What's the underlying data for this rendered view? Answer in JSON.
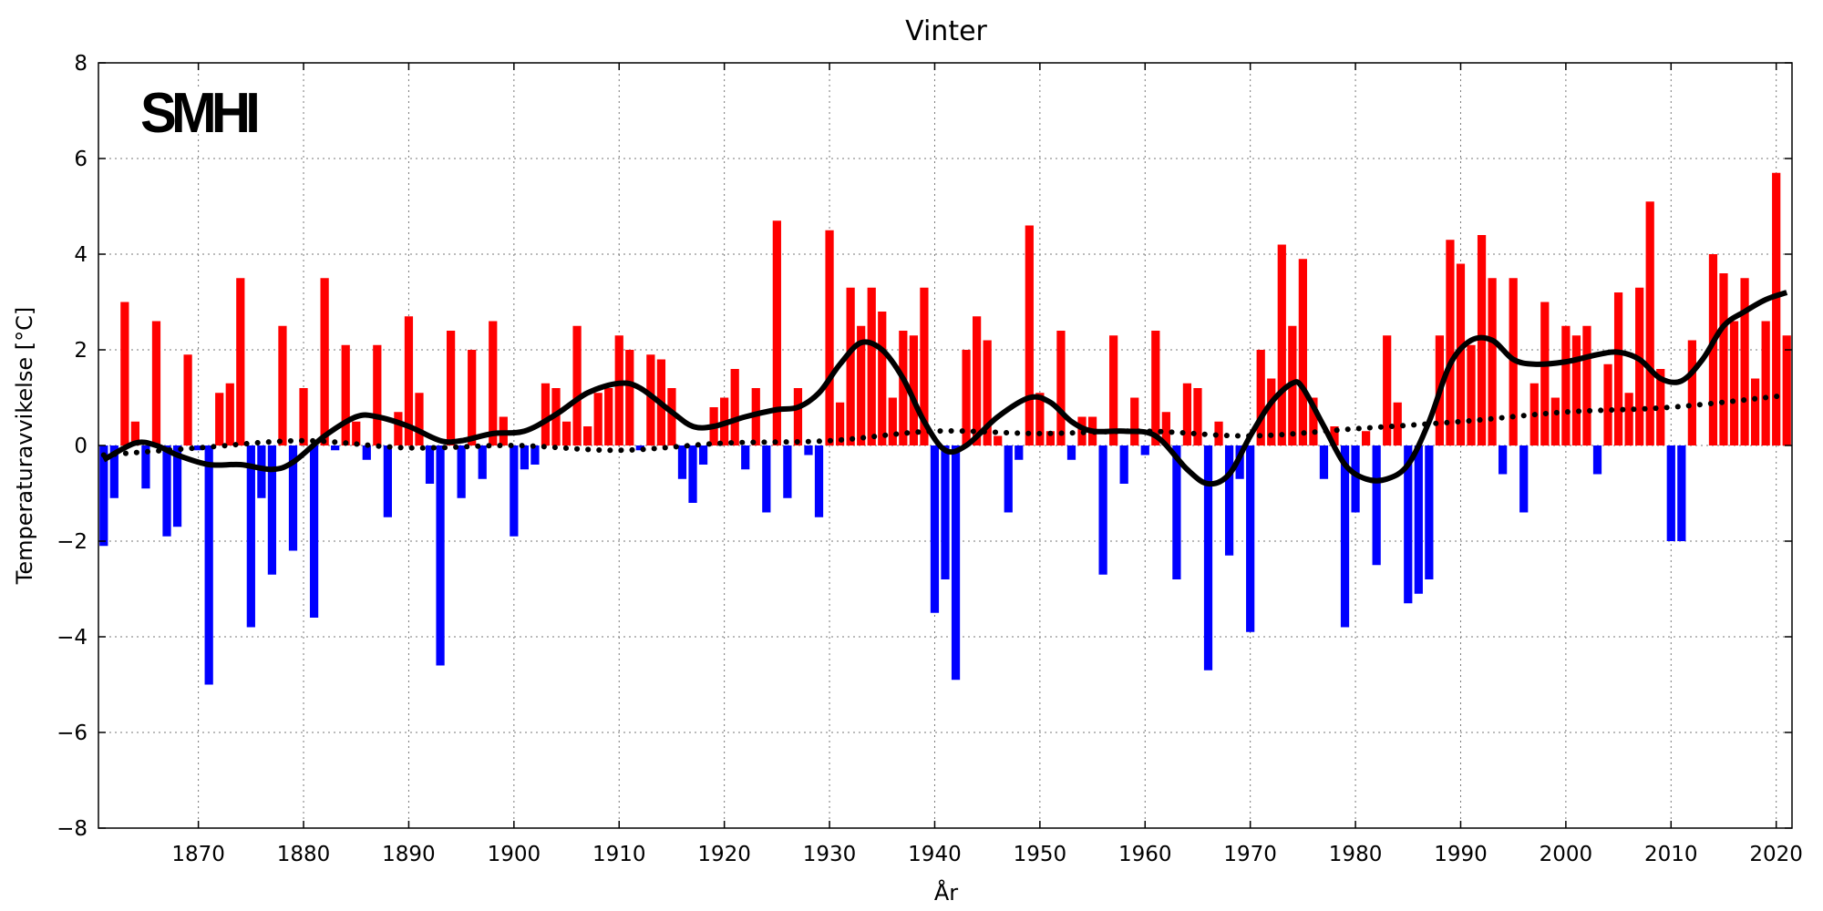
{
  "chart_data": {
    "type": "bar",
    "title": "Vinter",
    "xlabel": "År",
    "ylabel": "Temperaturavvikelse [°C]",
    "logo_text": "SMHI",
    "xlim": [
      1860.5,
      2021.5
    ],
    "ylim": [
      -8,
      8
    ],
    "grid": true,
    "x_ticks": [
      1870,
      1880,
      1890,
      1900,
      1910,
      1920,
      1930,
      1940,
      1950,
      1960,
      1970,
      1980,
      1990,
      2000,
      2010,
      2020
    ],
    "y_ticks": [
      -8,
      -6,
      -4,
      -2,
      0,
      2,
      4,
      6,
      8
    ],
    "y_tick_labels": [
      "−8",
      "−6",
      "−4",
      "−2",
      "0",
      "2",
      "4",
      "6",
      "8"
    ],
    "colors": {
      "positive": "#ff0000",
      "negative": "#0000ff",
      "curve": "#000000"
    },
    "start_year": 1861,
    "values": [
      -2.1,
      -1.1,
      3.0,
      0.5,
      -0.9,
      2.6,
      -1.9,
      -1.7,
      1.9,
      -0.1,
      -5.0,
      1.1,
      1.3,
      3.5,
      -3.8,
      -1.1,
      -2.7,
      2.5,
      -2.2,
      1.2,
      -3.6,
      3.5,
      -0.1,
      2.1,
      0.5,
      -0.3,
      2.1,
      -1.5,
      0.7,
      2.7,
      1.1,
      -0.8,
      -4.6,
      2.4,
      -1.1,
      2.0,
      -0.7,
      2.6,
      0.6,
      -1.9,
      -0.5,
      -0.4,
      1.3,
      1.2,
      0.5,
      2.5,
      0.4,
      1.1,
      1.2,
      2.3,
      2.0,
      -0.1,
      1.9,
      1.8,
      1.2,
      -0.7,
      -1.2,
      -0.4,
      0.8,
      1.0,
      1.6,
      -0.5,
      1.2,
      -1.4,
      4.7,
      -1.1,
      1.2,
      -0.2,
      -1.5,
      4.5,
      0.9,
      3.3,
      2.5,
      3.3,
      2.8,
      1.0,
      2.4,
      2.3,
      3.3,
      -3.5,
      -2.8,
      -4.9,
      2.0,
      2.7,
      2.2,
      0.2,
      -1.4,
      -0.3,
      4.6,
      1.1,
      0.3,
      2.4,
      -0.3,
      0.6,
      0.6,
      -2.7,
      2.3,
      -0.8,
      1.0,
      -0.2,
      2.4,
      0.7,
      -2.8,
      1.3,
      1.2,
      -4.7,
      0.5,
      -2.3,
      -0.7,
      -3.9,
      2.0,
      1.4,
      4.2,
      2.5,
      3.9,
      1.0,
      -0.7,
      0.4,
      -3.8,
      -1.4,
      0.3,
      -2.5,
      2.3,
      0.9,
      -3.3,
      -3.1,
      -2.8,
      2.3,
      4.3,
      3.8,
      2.1,
      4.4,
      3.5,
      -0.6,
      3.5,
      -1.4,
      1.3,
      3.0,
      1.0,
      2.5,
      2.3,
      2.5,
      -0.6,
      1.7,
      3.2,
      1.1,
      3.3,
      5.1,
      1.6,
      -2.0,
      -2.0,
      2.2,
      0.0,
      4.0,
      3.6,
      2.6,
      3.5,
      1.4,
      2.6,
      5.7,
      2.3
    ],
    "smooth_curve": [
      [
        1861,
        -0.3
      ],
      [
        1864,
        0.05
      ],
      [
        1866,
        0.0
      ],
      [
        1868,
        -0.2
      ],
      [
        1871,
        -0.4
      ],
      [
        1874,
        -0.4
      ],
      [
        1877,
        -0.5
      ],
      [
        1879,
        -0.35
      ],
      [
        1882,
        0.2
      ],
      [
        1885,
        0.6
      ],
      [
        1887,
        0.6
      ],
      [
        1890,
        0.4
      ],
      [
        1893,
        0.1
      ],
      [
        1895,
        0.1
      ],
      [
        1898,
        0.25
      ],
      [
        1901,
        0.3
      ],
      [
        1904,
        0.65
      ],
      [
        1907,
        1.1
      ],
      [
        1910,
        1.3
      ],
      [
        1912,
        1.2
      ],
      [
        1915,
        0.7
      ],
      [
        1917,
        0.4
      ],
      [
        1919,
        0.4
      ],
      [
        1922,
        0.6
      ],
      [
        1925,
        0.75
      ],
      [
        1927,
        0.8
      ],
      [
        1929,
        1.1
      ],
      [
        1931,
        1.7
      ],
      [
        1933,
        2.15
      ],
      [
        1935,
        2.0
      ],
      [
        1937,
        1.4
      ],
      [
        1939,
        0.5
      ],
      [
        1941,
        -0.1
      ],
      [
        1943,
        0.0
      ],
      [
        1946,
        0.6
      ],
      [
        1949,
        1.0
      ],
      [
        1951,
        0.9
      ],
      [
        1953,
        0.5
      ],
      [
        1955,
        0.3
      ],
      [
        1958,
        0.3
      ],
      [
        1961,
        0.2
      ],
      [
        1964,
        -0.5
      ],
      [
        1966,
        -0.8
      ],
      [
        1968,
        -0.6
      ],
      [
        1970,
        0.2
      ],
      [
        1972,
        0.9
      ],
      [
        1974,
        1.3
      ],
      [
        1975,
        1.2
      ],
      [
        1977,
        0.4
      ],
      [
        1979,
        -0.4
      ],
      [
        1981,
        -0.7
      ],
      [
        1983,
        -0.7
      ],
      [
        1985,
        -0.4
      ],
      [
        1987,
        0.5
      ],
      [
        1989,
        1.7
      ],
      [
        1991,
        2.2
      ],
      [
        1993,
        2.2
      ],
      [
        1995,
        1.8
      ],
      [
        1997,
        1.7
      ],
      [
        2000,
        1.75
      ],
      [
        2003,
        1.9
      ],
      [
        2005,
        1.95
      ],
      [
        2007,
        1.8
      ],
      [
        2009,
        1.4
      ],
      [
        2011,
        1.35
      ],
      [
        2013,
        1.8
      ],
      [
        2015,
        2.5
      ],
      [
        2017,
        2.8
      ],
      [
        2019,
        3.05
      ],
      [
        2021,
        3.2
      ]
    ],
    "trend_curve": [
      [
        1861,
        -0.2
      ],
      [
        1870,
        -0.05
      ],
      [
        1880,
        0.1
      ],
      [
        1890,
        -0.05
      ],
      [
        1900,
        0.0
      ],
      [
        1910,
        -0.1
      ],
      [
        1920,
        0.05
      ],
      [
        1930,
        0.1
      ],
      [
        1940,
        0.3
      ],
      [
        1950,
        0.25
      ],
      [
        1960,
        0.3
      ],
      [
        1970,
        0.2
      ],
      [
        1980,
        0.35
      ],
      [
        1990,
        0.5
      ],
      [
        2000,
        0.7
      ],
      [
        2010,
        0.8
      ],
      [
        2021,
        1.05
      ]
    ]
  }
}
